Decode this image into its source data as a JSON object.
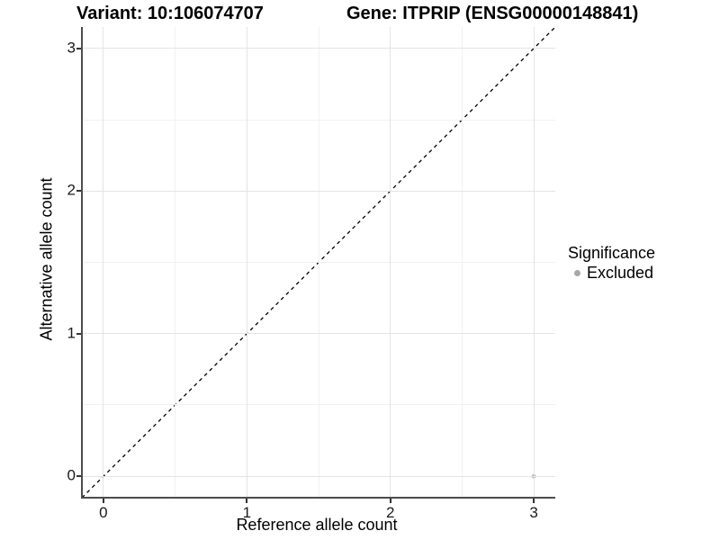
{
  "titles": {
    "left": "Variant: 10:106074707",
    "right": "Gene: ITPRIP (ENSG00000148841)"
  },
  "chart_data": {
    "type": "scatter",
    "xlabel": "Reference allele count",
    "ylabel": "Alternative allele count",
    "xlim": [
      -0.15,
      3.15
    ],
    "ylim": [
      -0.15,
      3.15
    ],
    "x_ticks": [
      0,
      1,
      2,
      3
    ],
    "y_ticks": [
      0,
      1,
      2,
      3
    ],
    "x_minor_ticks": [
      0.5,
      1.5,
      2.5
    ],
    "y_minor_ticks": [
      0.5,
      1.5,
      2.5
    ],
    "grid": true,
    "reference_line": {
      "type": "identity",
      "slope": 1,
      "intercept": 0,
      "style": "dashed",
      "color": "#000000"
    },
    "series": [
      {
        "name": "Excluded",
        "color": "#b0b0b0",
        "points": [
          {
            "x": 3,
            "y": 0
          }
        ]
      }
    ],
    "legend": {
      "title": "Significance",
      "position": "right",
      "items": [
        {
          "label": "Excluded",
          "color": "#a8a8a8"
        }
      ]
    }
  },
  "colors": {
    "grid_major": "#e4e4e4",
    "grid_minor": "#f1f1f1",
    "axis_line": "#4d4d4d",
    "point": "#b0b0b0"
  }
}
